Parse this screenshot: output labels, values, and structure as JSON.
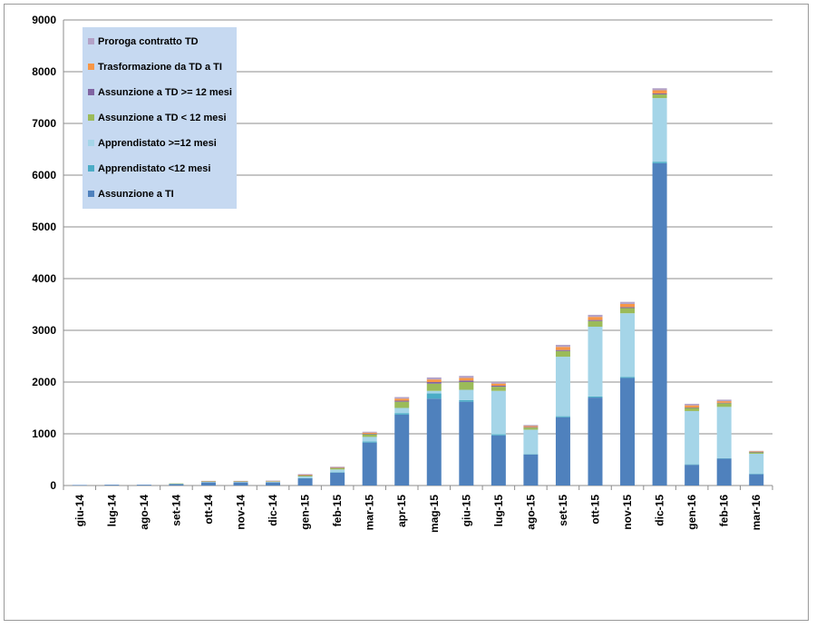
{
  "chart_data": {
    "type": "bar",
    "stacked": true,
    "categories": [
      "giu-14",
      "lug-14",
      "ago-14",
      "set-14",
      "ott-14",
      "nov-14",
      "dic-14",
      "gen-15",
      "feb-15",
      "mar-15",
      "apr-15",
      "mag-15",
      "giu-15",
      "lug-15",
      "ago-15",
      "set-15",
      "ott-15",
      "nov-15",
      "dic-15",
      "gen-16",
      "feb-16",
      "mar-16"
    ],
    "ylim": [
      0,
      9000
    ],
    "yticks": [
      0,
      1000,
      2000,
      3000,
      4000,
      5000,
      6000,
      7000,
      8000,
      9000
    ],
    "grid": true,
    "legend_position": "top-left",
    "series": [
      {
        "name": "Assunzione a TI",
        "color": "#4f81bd",
        "values": [
          10,
          15,
          15,
          30,
          60,
          60,
          60,
          140,
          250,
          830,
          1370,
          1680,
          1620,
          970,
          600,
          1320,
          1700,
          2080,
          6230,
          400,
          520,
          220
        ]
      },
      {
        "name": "Apprendistato <12 mesi",
        "color": "#4bacc6",
        "values": [
          0,
          0,
          0,
          0,
          0,
          0,
          0,
          5,
          10,
          20,
          30,
          100,
          30,
          20,
          10,
          20,
          20,
          20,
          30,
          10,
          10,
          5
        ]
      },
      {
        "name": "Apprendistato  >=12 mesi",
        "color": "#a5d5e8",
        "values": [
          0,
          0,
          0,
          5,
          10,
          10,
          15,
          30,
          50,
          90,
          100,
          50,
          200,
          840,
          470,
          1150,
          1350,
          1230,
          1230,
          1030,
          990,
          390
        ]
      },
      {
        "name": "Assunzione a TD < 12 mesi",
        "color": "#9bbb59",
        "values": [
          0,
          0,
          0,
          5,
          10,
          10,
          10,
          20,
          30,
          50,
          120,
          140,
          150,
          80,
          40,
          110,
          110,
          100,
          70,
          60,
          70,
          30
        ]
      },
      {
        "name": "Assunzione a TD >= 12 mesi",
        "color": "#8064a2",
        "values": [
          0,
          0,
          0,
          0,
          0,
          0,
          0,
          5,
          5,
          10,
          20,
          30,
          30,
          20,
          10,
          20,
          20,
          20,
          20,
          10,
          10,
          5
        ]
      },
      {
        "name": "Trasformazione da TD a TI",
        "color": "#f79646",
        "values": [
          0,
          0,
          0,
          0,
          5,
          5,
          5,
          10,
          10,
          20,
          40,
          50,
          50,
          40,
          20,
          60,
          60,
          60,
          60,
          40,
          30,
          10
        ]
      },
      {
        "name": "Proroga contratto TD",
        "color": "#b3a2c7",
        "values": [
          0,
          0,
          0,
          0,
          5,
          5,
          5,
          10,
          10,
          20,
          30,
          40,
          40,
          30,
          20,
          40,
          40,
          40,
          40,
          30,
          30,
          10
        ]
      }
    ]
  }
}
